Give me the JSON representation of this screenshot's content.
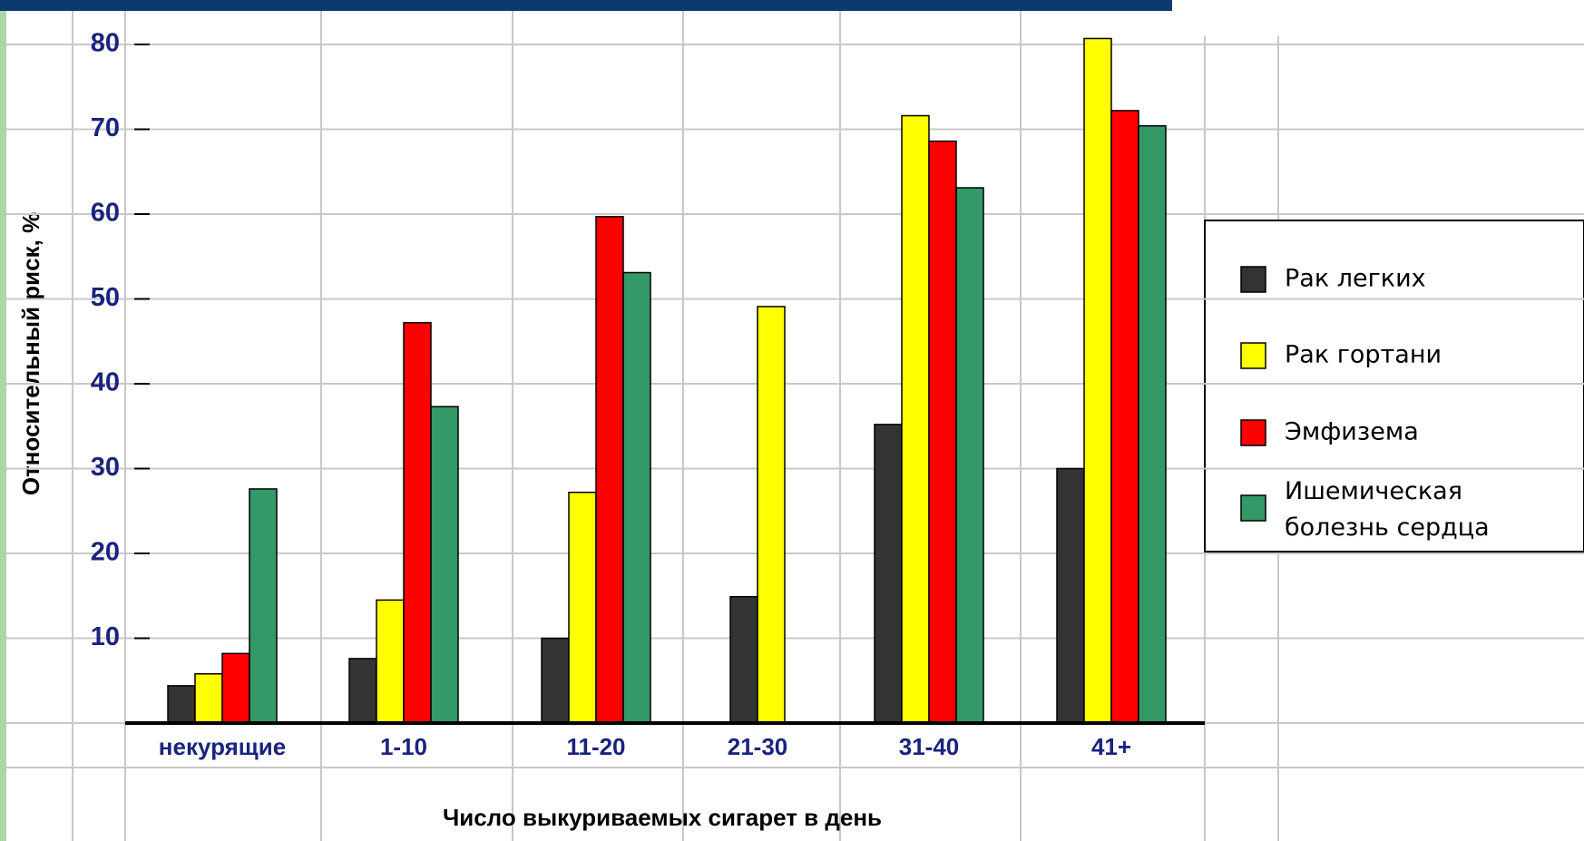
{
  "chart_data": {
    "type": "bar",
    "y_label": "Относительный риск, %",
    "x_label": "Число выкуриваемых сигарет в день",
    "categories": [
      "некурящие",
      "1-10",
      "11-20",
      "21-30",
      "31-40",
      "41+"
    ],
    "series": [
      {
        "name": "Рак легких",
        "color": "#333333",
        "values": [
          4.4,
          7.6,
          10,
          14.9,
          35.2,
          30
        ]
      },
      {
        "name": "Рак гортани",
        "color": "#ffff00",
        "values": [
          5.8,
          14.5,
          27.2,
          49.1,
          71.6,
          80.7
        ]
      },
      {
        "name": "Эмфизема",
        "color": "#ff0000",
        "values": [
          8.2,
          47.2,
          59.7,
          null,
          68.6,
          72.2
        ]
      },
      {
        "name": "Ишемическая болезнь сердца",
        "color": "#339966",
        "values": [
          27.6,
          37.3,
          53.1,
          null,
          63.1,
          70.4
        ]
      }
    ],
    "ylim": [
      0,
      84
    ],
    "yticks": [
      10,
      20,
      30,
      40,
      50,
      60,
      70,
      80
    ],
    "grid": true,
    "legend": "right"
  }
}
